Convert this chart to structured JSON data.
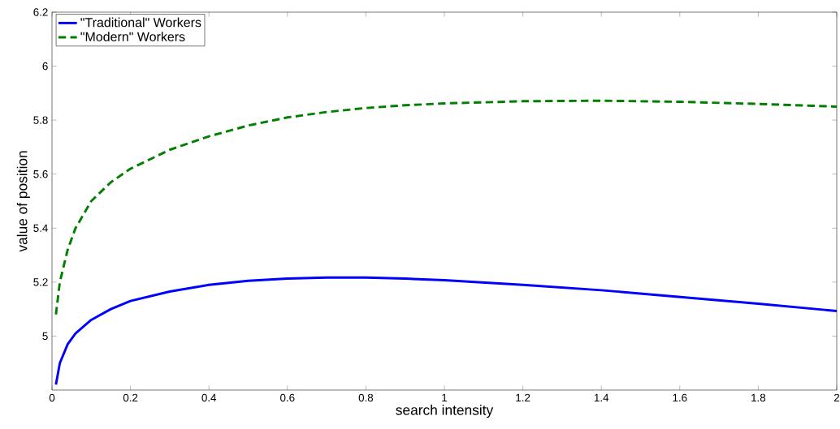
{
  "chart_data": {
    "type": "line",
    "xlabel": "search intensity",
    "ylabel": "value of position",
    "xlim": [
      0,
      2
    ],
    "ylim": [
      4.8,
      6.2
    ],
    "xticks": [
      0,
      0.2,
      0.4,
      0.6,
      0.8,
      1,
      1.2,
      1.4,
      1.6,
      1.8,
      2
    ],
    "yticks": [
      5,
      5.2,
      5.4,
      5.6,
      5.8,
      6,
      6.2
    ],
    "legend": "top left",
    "x": [
      0.01,
      0.02,
      0.04,
      0.06,
      0.1,
      0.15,
      0.2,
      0.3,
      0.4,
      0.5,
      0.6,
      0.7,
      0.8,
      0.9,
      1.0,
      1.2,
      1.4,
      1.6,
      1.8,
      2.0
    ],
    "series": [
      {
        "name": "\"Traditional\" Workers",
        "color": "#0000ff",
        "line_style": "solid",
        "values": [
          4.82,
          4.9,
          4.97,
          5.01,
          5.06,
          5.1,
          5.13,
          5.165,
          5.19,
          5.205,
          5.213,
          5.217,
          5.217,
          5.213,
          5.207,
          5.19,
          5.17,
          5.145,
          5.12,
          5.093
        ]
      },
      {
        "name": "\"Modern\" Workers",
        "color": "#007f00",
        "line_style": "dashed",
        "values": [
          5.08,
          5.2,
          5.32,
          5.4,
          5.5,
          5.57,
          5.62,
          5.69,
          5.74,
          5.78,
          5.81,
          5.83,
          5.845,
          5.855,
          5.862,
          5.87,
          5.872,
          5.868,
          5.86,
          5.85
        ]
      }
    ]
  }
}
